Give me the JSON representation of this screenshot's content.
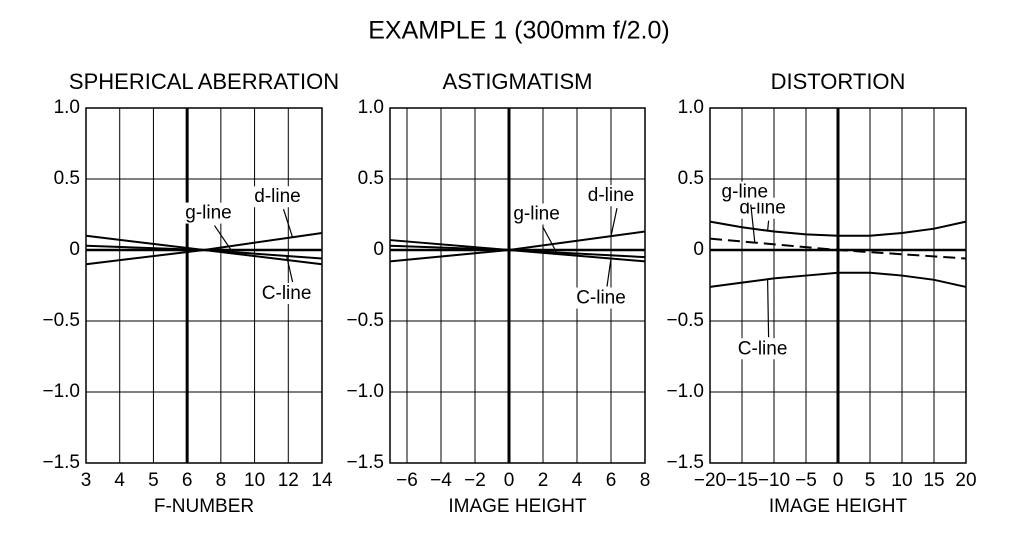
{
  "title": "EXAMPLE 1 (300mm f/2.0)",
  "chart_data": [
    {
      "type": "line",
      "title": "SPHERICAL ABERRATION",
      "xlabel": "F-NUMBER",
      "xlim": [
        3,
        14
      ],
      "xticks": [
        3,
        4,
        5,
        6,
        8,
        10,
        12,
        14
      ],
      "reference_x": 6,
      "ylim": [
        -1.5,
        1.0
      ],
      "yticks": [
        {
          "value": 1.0,
          "label": "1.0"
        },
        0.5,
        0,
        {
          "value": -0.5,
          "label": "−0.5"
        },
        {
          "value": -1.0,
          "label": "−1.0"
        },
        {
          "value": -1.5,
          "label": "−1.5"
        }
      ],
      "grid": true,
      "series": [
        {
          "name": "d-line",
          "color": "#000000",
          "linestyle": "solid",
          "x": [
            3,
            7,
            14
          ],
          "values": [
            -0.1,
            0,
            0.12
          ]
        },
        {
          "name": "g-line",
          "color": "#000000",
          "linestyle": "solid",
          "x": [
            3,
            7,
            14
          ],
          "values": [
            0.1,
            0,
            -0.1
          ]
        },
        {
          "name": "C-line",
          "color": "#000000",
          "linestyle": "solid",
          "x": [
            3,
            7,
            14
          ],
          "values": [
            0.03,
            0,
            -0.06
          ]
        }
      ]
    },
    {
      "type": "line",
      "title": "ASTIGMATISM",
      "xlabel": "IMAGE HEIGHT",
      "xlim": [
        -7,
        8
      ],
      "xticks": [
        {
          "value": -6,
          "label": "−6"
        },
        {
          "value": -4,
          "label": "−4"
        },
        {
          "value": -2,
          "label": "−2"
        },
        0,
        2,
        4,
        6,
        8
      ],
      "reference_x": 0,
      "ylim": [
        -1.5,
        1.0
      ],
      "yticks": [
        {
          "value": 1.0,
          "label": "1.0"
        },
        0.5,
        0,
        {
          "value": -0.5,
          "label": "−0.5"
        },
        {
          "value": -1.0,
          "label": "−1.0"
        },
        {
          "value": -1.5,
          "label": "−1.5"
        }
      ],
      "grid": true,
      "series": [
        {
          "name": "d-line",
          "color": "#000000",
          "linestyle": "solid",
          "x": [
            -7,
            0,
            8
          ],
          "values": [
            -0.08,
            0,
            0.13
          ]
        },
        {
          "name": "g-line",
          "color": "#000000",
          "linestyle": "solid",
          "x": [
            -7,
            0,
            8
          ],
          "values": [
            0.07,
            0,
            -0.05
          ]
        },
        {
          "name": "C-line",
          "color": "#000000",
          "linestyle": "solid",
          "x": [
            -7,
            0,
            8
          ],
          "values": [
            0.03,
            0,
            -0.08
          ]
        }
      ]
    },
    {
      "type": "line",
      "title": "DISTORTION",
      "xlabel": "IMAGE HEIGHT",
      "xlim": [
        -20,
        20
      ],
      "xticks": [
        {
          "value": -20,
          "label": "−20"
        },
        {
          "value": -15,
          "label": "−15"
        },
        {
          "value": -10,
          "label": "−10"
        },
        {
          "value": -5,
          "label": "−5"
        },
        0,
        5,
        10,
        15,
        20
      ],
      "reference_x": 0,
      "ylim": [
        -1.5,
        1.0
      ],
      "yticks": [
        {
          "value": 1.0,
          "label": "1.0"
        },
        0.5,
        0,
        {
          "value": -0.5,
          "label": "−0.5"
        },
        {
          "value": -1.0,
          "label": "−1.0"
        },
        {
          "value": -1.5,
          "label": "−1.5"
        }
      ],
      "grid": true,
      "series": [
        {
          "name": "d-line",
          "color": "#000000",
          "linestyle": "solid",
          "x": [
            -20,
            -15,
            -10,
            -5,
            0,
            5,
            10,
            15,
            20
          ],
          "values": [
            0.2,
            0.16,
            0.13,
            0.11,
            0.1,
            0.1,
            0.12,
            0.15,
            0.2
          ]
        },
        {
          "name": "g-line",
          "color": "#000000",
          "linestyle": "dashed",
          "x": [
            -20,
            0,
            20
          ],
          "values": [
            0.08,
            0,
            -0.06
          ]
        },
        {
          "name": "C-line",
          "color": "#000000",
          "linestyle": "solid",
          "x": [
            -20,
            -15,
            -10,
            -5,
            0,
            5,
            10,
            15,
            20
          ],
          "values": [
            -0.26,
            -0.23,
            -0.2,
            -0.18,
            -0.16,
            -0.16,
            -0.18,
            -0.21,
            -0.26
          ]
        }
      ]
    }
  ]
}
